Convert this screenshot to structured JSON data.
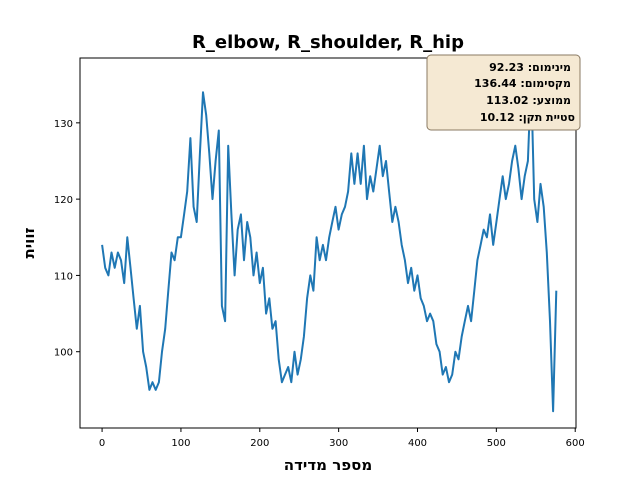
{
  "chart_data": {
    "type": "line",
    "title": "R_elbow, R_shoulder, R_hip",
    "xlabel": "מספר מדידה",
    "ylabel": "זווית",
    "xlim": [
      -28,
      601
    ],
    "ylim": [
      90,
      138.5
    ],
    "xticks": [
      0,
      100,
      200,
      300,
      400,
      500,
      600
    ],
    "yticks": [
      100,
      110,
      120,
      130
    ],
    "grid": false,
    "line_color": "#1f77b4",
    "stats_box": {
      "placement": "top-right",
      "lines": [
        "מינימום: 92.23",
        "מקסימום: 136.44",
        "ממוצע: 113.02",
        "סטיית תקן: 10.12"
      ],
      "bg_color": "#f5e9d3",
      "border_color": "#8a7a63"
    },
    "series": [
      {
        "x": [
          0,
          4,
          8,
          12,
          16,
          20,
          24,
          28,
          32,
          36,
          40,
          44,
          48,
          52,
          56,
          60,
          64,
          68,
          72,
          76,
          80,
          84,
          88,
          92,
          96,
          100,
          104,
          108,
          112,
          116,
          120,
          124,
          128,
          132,
          136,
          140,
          144,
          148,
          152,
          156,
          160,
          164,
          168,
          172,
          176,
          180,
          184,
          188,
          192,
          196,
          200,
          204,
          208,
          212,
          216,
          220,
          224,
          228,
          232,
          236,
          240,
          244,
          248,
          252,
          256,
          260,
          264,
          268,
          272,
          276,
          280,
          284,
          288,
          292,
          296,
          300,
          304,
          308,
          312,
          316,
          320,
          324,
          328,
          332,
          336,
          340,
          344,
          348,
          352,
          356,
          360,
          364,
          368,
          372,
          376,
          380,
          384,
          388,
          392,
          396,
          400,
          404,
          408,
          412,
          416,
          420,
          424,
          428,
          432,
          436,
          440,
          444,
          448,
          452,
          456,
          460,
          464,
          468,
          472,
          476,
          480,
          484,
          488,
          492,
          496,
          500,
          504,
          508,
          512,
          516,
          520,
          524,
          528,
          532,
          536,
          540,
          544,
          548,
          552,
          556,
          560,
          564,
          568,
          572,
          576
        ],
        "y": [
          114,
          111,
          110,
          113,
          111,
          113,
          112,
          109,
          115,
          111,
          107,
          103,
          106,
          100,
          98,
          95,
          96,
          95,
          96,
          100,
          103,
          108,
          113,
          112,
          115,
          115,
          118,
          121,
          128,
          119,
          117,
          126,
          134,
          131,
          126,
          120,
          125,
          129,
          106,
          104,
          127,
          118,
          110,
          116,
          118,
          112,
          117,
          115,
          110,
          113,
          109,
          111,
          105,
          107,
          103,
          104,
          99,
          96,
          97,
          98,
          96,
          100,
          97,
          99,
          102,
          107,
          110,
          108,
          115,
          112,
          114,
          112,
          115,
          117,
          119,
          116,
          118,
          119,
          121,
          126,
          122,
          126,
          122,
          127,
          120,
          123,
          121,
          124,
          127,
          123,
          125,
          121,
          117,
          119,
          117,
          114,
          112,
          109,
          111,
          108,
          110,
          107,
          106,
          104,
          105,
          104,
          101,
          100,
          97,
          98,
          96,
          97,
          100,
          99,
          102,
          104,
          106,
          104,
          108,
          112,
          114,
          116,
          115,
          118,
          114,
          117,
          120,
          123,
          120,
          122,
          125,
          127,
          124,
          120,
          123,
          125,
          136,
          120,
          117,
          122,
          119,
          113,
          104,
          92.2,
          108
        ]
      }
    ]
  }
}
